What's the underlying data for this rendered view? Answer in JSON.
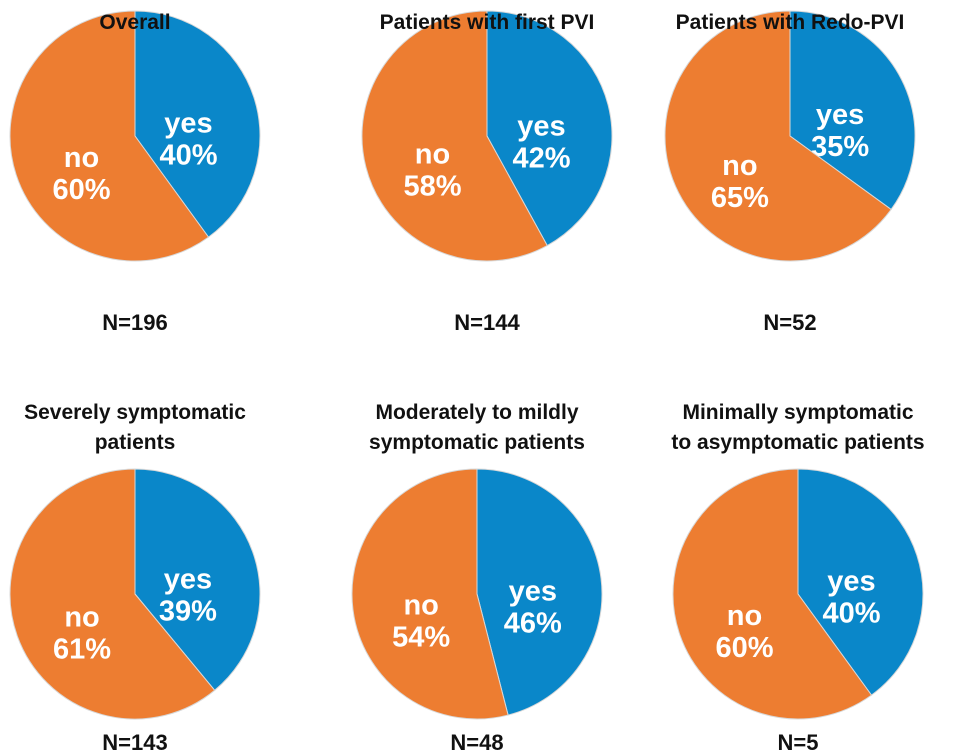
{
  "chart_data": [
    {
      "type": "pie",
      "title": "Overall",
      "categories": [
        "yes",
        "no"
      ],
      "values": [
        40,
        60
      ],
      "value_labels": [
        "40%",
        "60%"
      ],
      "colors": [
        "#0a87c9",
        "#ed7d31"
      ],
      "note": "N=196"
    },
    {
      "type": "pie",
      "title": "Patients with first PVI",
      "categories": [
        "yes",
        "no"
      ],
      "values": [
        42,
        58
      ],
      "value_labels": [
        "42%",
        "58%"
      ],
      "colors": [
        "#0a87c9",
        "#ed7d31"
      ],
      "note": "N=144"
    },
    {
      "type": "pie",
      "title": "Patients with Redo-PVI",
      "categories": [
        "yes",
        "no"
      ],
      "values": [
        35,
        65
      ],
      "value_labels": [
        "35%",
        "65%"
      ],
      "colors": [
        "#0a87c9",
        "#ed7d31"
      ],
      "note": "N=52"
    },
    {
      "type": "pie",
      "title": "Severely symptomatic\npatients",
      "categories": [
        "yes",
        "no"
      ],
      "values": [
        39,
        61
      ],
      "value_labels": [
        "39%",
        "61%"
      ],
      "colors": [
        "#0a87c9",
        "#ed7d31"
      ],
      "note": "N=143"
    },
    {
      "type": "pie",
      "title": "Moderately to mildly\nsymptomatic patients",
      "categories": [
        "yes",
        "no"
      ],
      "values": [
        46,
        54
      ],
      "value_labels": [
        "46%",
        "54%"
      ],
      "colors": [
        "#0a87c9",
        "#ed7d31"
      ],
      "note": "N=48"
    },
    {
      "type": "pie",
      "title": "Minimally symptomatic\nto asymptomatic patients",
      "categories": [
        "yes",
        "no"
      ],
      "values": [
        40,
        60
      ],
      "value_labels": [
        "40%",
        "60%"
      ],
      "colors": [
        "#0a87c9",
        "#ed7d31"
      ],
      "note": "N=5"
    }
  ]
}
